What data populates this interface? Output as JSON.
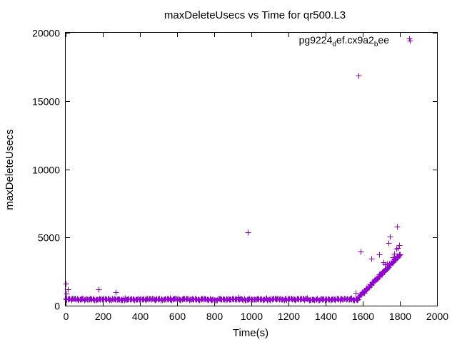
{
  "chart_data": {
    "type": "scatter",
    "title": "maxDeleteUsecs vs Time for qr500.L3",
    "xlabel": "Time(s)",
    "ylabel": "maxDeleteUsecs",
    "xlim": [
      0,
      2000
    ],
    "ylim": [
      0,
      20000
    ],
    "xticks": [
      0,
      200,
      400,
      600,
      800,
      1000,
      1200,
      1400,
      1600,
      1800,
      2000
    ],
    "yticks": [
      0,
      5000,
      10000,
      15000,
      20000
    ],
    "xtick_labels": [
      "0",
      "200",
      "400",
      "600",
      "800",
      "1000",
      "1200",
      "1400",
      "1600",
      "1800",
      "2000"
    ],
    "ytick_labels": [
      "0",
      "5000",
      "10000",
      "15000",
      "20000"
    ],
    "grid": false,
    "legend_position": "top-right",
    "marker": "+",
    "color": "#9400d3",
    "series": [
      {
        "legend_parts": [
          {
            "text": "pg9224",
            "sub": false
          },
          {
            "text": "d",
            "sub": true
          },
          {
            "text": "ef.cx9a2",
            "sub": false
          },
          {
            "text": "b",
            "sub": true
          },
          {
            "text": "ee",
            "sub": false
          }
        ],
        "baseline": {
          "x_start": 0,
          "x_end": 1570,
          "x_step": 5,
          "y_center": 480,
          "y_jitter": 60
        },
        "ramp": {
          "x_start": 1570,
          "x_end": 1800,
          "x_step": 3,
          "y_start": 500,
          "y_end": 3800,
          "y_jitter": 90
        },
        "points": [
          [
            0,
            1600
          ],
          [
            5,
            900
          ],
          [
            10,
            1200
          ],
          [
            175,
            1200
          ],
          [
            270,
            1000
          ],
          [
            320,
            600
          ],
          [
            560,
            600
          ],
          [
            930,
            650
          ],
          [
            980,
            5400
          ],
          [
            1080,
            600
          ],
          [
            1300,
            600
          ],
          [
            1540,
            600
          ],
          [
            1560,
            950
          ],
          [
            1575,
            16850
          ],
          [
            1590,
            3950
          ],
          [
            1645,
            3450
          ],
          [
            1690,
            3750
          ],
          [
            1710,
            3200
          ],
          [
            1720,
            3050
          ],
          [
            1730,
            3100
          ],
          [
            1740,
            4600
          ],
          [
            1745,
            5050
          ],
          [
            1760,
            3550
          ],
          [
            1770,
            3800
          ],
          [
            1780,
            4200
          ],
          [
            1785,
            5800
          ],
          [
            1790,
            4250
          ],
          [
            1795,
            4450
          ],
          [
            1800,
            3750
          ],
          [
            1850,
            19600
          ]
        ]
      }
    ]
  }
}
